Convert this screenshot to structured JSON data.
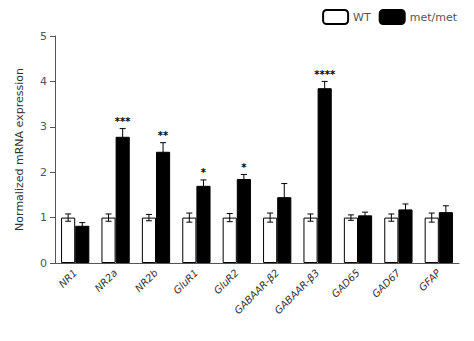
{
  "chart_data": {
    "type": "bar",
    "categories": [
      "NR1",
      "NR2a",
      "NR2b",
      "GluR1",
      "GluR2",
      "GABAAR-β2",
      "GABAAR-β3",
      "GAD65",
      "GAD67",
      "GFAP"
    ],
    "series": [
      {
        "name": "WT",
        "color": "#ffffff",
        "values": [
          1.0,
          1.0,
          1.0,
          1.0,
          1.0,
          1.0,
          1.0,
          1.0,
          1.0,
          1.0
        ],
        "errors": [
          0.08,
          0.08,
          0.07,
          0.1,
          0.09,
          0.1,
          0.08,
          0.06,
          0.08,
          0.1
        ]
      },
      {
        "name": "met/met",
        "color": "#000000",
        "values": [
          0.82,
          2.78,
          2.45,
          1.7,
          1.85,
          1.45,
          3.85,
          1.05,
          1.18,
          1.12
        ],
        "errors": [
          0.07,
          0.18,
          0.2,
          0.13,
          0.1,
          0.3,
          0.15,
          0.07,
          0.12,
          0.14
        ],
        "significance": [
          null,
          "***",
          "**",
          "*",
          "*",
          null,
          "****",
          null,
          null,
          null
        ]
      }
    ],
    "ylabel": "Normalized mRNA expression",
    "ylim": [
      0,
      5
    ],
    "yticks": [
      0,
      1,
      2,
      3,
      4,
      5
    ],
    "grid": false,
    "legend": "upper right"
  }
}
